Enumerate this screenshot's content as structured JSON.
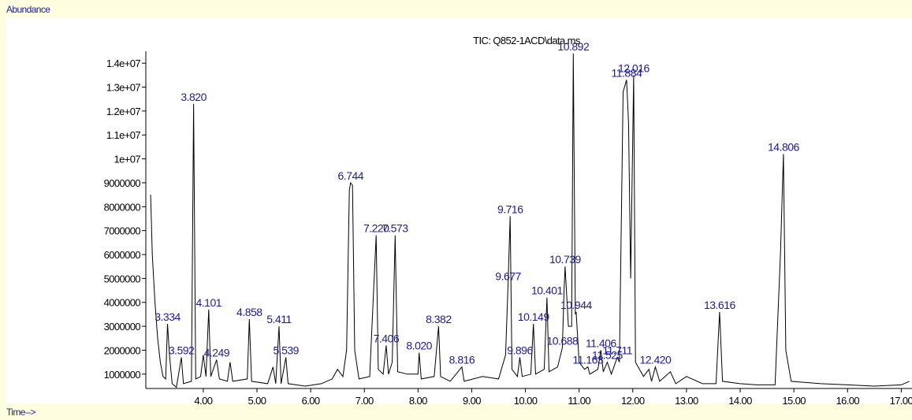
{
  "chart_data": {
    "type": "line",
    "title": "TIC: Q852-1ACD\\data.ms",
    "y_label": "Abundance",
    "x_label": "Time-->",
    "color": "#000000",
    "x": [
      3.02,
      3.05,
      3.1,
      3.15,
      3.2,
      3.25,
      3.3,
      3.334,
      3.37,
      3.42,
      3.5,
      3.592,
      3.63,
      3.78,
      3.82,
      3.86,
      3.95,
      4.0,
      4.05,
      4.101,
      4.14,
      4.249,
      4.3,
      4.45,
      4.5,
      4.55,
      4.82,
      4.858,
      4.9,
      5.2,
      5.3,
      5.35,
      5.411,
      5.45,
      5.539,
      5.58,
      5.9,
      6.2,
      6.4,
      6.5,
      6.6,
      6.67,
      6.72,
      6.744,
      6.78,
      6.82,
      6.9,
      7.1,
      7.22,
      7.26,
      7.35,
      7.406,
      7.45,
      7.52,
      7.573,
      7.62,
      7.8,
      8.0,
      8.02,
      8.06,
      8.3,
      8.382,
      8.42,
      8.6,
      8.816,
      8.86,
      9.2,
      9.5,
      9.63,
      9.677,
      9.716,
      9.75,
      9.85,
      9.896,
      9.94,
      10.1,
      10.149,
      10.19,
      10.35,
      10.401,
      10.44,
      10.6,
      10.688,
      10.72,
      10.739,
      10.8,
      10.86,
      10.892,
      10.93,
      10.944,
      11.0,
      11.1,
      11.163,
      11.2,
      11.35,
      11.406,
      11.45,
      11.525,
      11.6,
      11.711,
      11.75,
      11.82,
      11.884,
      11.92,
      11.96,
      12.016,
      12.05,
      12.2,
      12.3,
      12.35,
      12.42,
      12.5,
      12.7,
      12.8,
      13.0,
      13.3,
      13.55,
      13.616,
      13.67,
      14.0,
      14.3,
      14.65,
      14.75,
      14.806,
      14.85,
      14.95,
      15.5,
      16.0,
      16.5,
      17.0,
      17.15
    ],
    "values": [
      8500000,
      6000000,
      4000000,
      2500000,
      1500000,
      900000,
      800000,
      3100000,
      1800000,
      600000,
      450000,
      1700000,
      600000,
      700000,
      12300000,
      800000,
      900000,
      1800000,
      900000,
      3700000,
      900000,
      1600000,
      800000,
      700000,
      1500000,
      700000,
      800000,
      3300000,
      700000,
      600000,
      1300000,
      600000,
      3000000,
      600000,
      1700000,
      600000,
      500000,
      600000,
      800000,
      1200000,
      900000,
      2000000,
      8700000,
      9000000,
      8900000,
      2000000,
      800000,
      900000,
      6800000,
      1200000,
      1000000,
      2200000,
      1000000,
      1500000,
      6800000,
      1100000,
      1000000,
      1000000,
      1900000,
      800000,
      900000,
      3000000,
      900000,
      700000,
      1300000,
      700000,
      900000,
      800000,
      1800000,
      4800000,
      7600000,
      1200000,
      900000,
      1700000,
      900000,
      1000000,
      3100000,
      1000000,
      1200000,
      4200000,
      1100000,
      1300000,
      2100000,
      4500000,
      5500000,
      3000000,
      3000000,
      14400000,
      3500000,
      3600000,
      1500000,
      1200000,
      1300000,
      1000000,
      1200000,
      2000000,
      1100000,
      1500000,
      1000000,
      1700000,
      1500000,
      12800000,
      13300000,
      11500000,
      5000000,
      13500000,
      1500000,
      900000,
      1200000,
      700000,
      1300000,
      700000,
      1100000,
      600000,
      900000,
      600000,
      600000,
      3600000,
      700000,
      600000,
      550000,
      550000,
      6000000,
      10200000,
      2000000,
      700000,
      600000,
      550000,
      500000,
      550000,
      700000
    ],
    "peaks": [
      {
        "label": "3.334",
        "x": 3.334,
        "y": 3100000
      },
      {
        "label": "3.592",
        "x": 3.592,
        "y": 1700000
      },
      {
        "label": "3.820",
        "x": 3.82,
        "y": 12300000
      },
      {
        "label": "4.101",
        "x": 4.101,
        "y": 3700000
      },
      {
        "label": "4.249",
        "x": 4.249,
        "y": 1600000
      },
      {
        "label": "4.858",
        "x": 4.858,
        "y": 3300000
      },
      {
        "label": "5.411",
        "x": 5.411,
        "y": 3000000
      },
      {
        "label": "5.539",
        "x": 5.539,
        "y": 1700000
      },
      {
        "label": "6.744",
        "x": 6.744,
        "y": 9000000
      },
      {
        "label": "7.220",
        "x": 7.22,
        "y": 6800000
      },
      {
        "label": "7.406",
        "x": 7.406,
        "y": 2200000
      },
      {
        "label": "7.573",
        "x": 7.573,
        "y": 6800000
      },
      {
        "label": "8.020",
        "x": 8.02,
        "y": 1900000
      },
      {
        "label": "8.382",
        "x": 8.382,
        "y": 3000000
      },
      {
        "label": "8.816",
        "x": 8.816,
        "y": 1300000
      },
      {
        "label": "9.677",
        "x": 9.677,
        "y": 4800000
      },
      {
        "label": "9.716",
        "x": 9.716,
        "y": 7600000
      },
      {
        "label": "9.896",
        "x": 9.896,
        "y": 1700000
      },
      {
        "label": "10.149",
        "x": 10.149,
        "y": 3100000
      },
      {
        "label": "10.401",
        "x": 10.401,
        "y": 4200000
      },
      {
        "label": "10.688",
        "x": 10.688,
        "y": 2100000
      },
      {
        "label": "10.739",
        "x": 10.739,
        "y": 5500000
      },
      {
        "label": "10.892",
        "x": 10.892,
        "y": 14400000
      },
      {
        "label": "10.944",
        "x": 10.944,
        "y": 3600000
      },
      {
        "label": "11.163",
        "x": 11.163,
        "y": 1300000
      },
      {
        "label": "11.406",
        "x": 11.406,
        "y": 2000000
      },
      {
        "label": "11.525",
        "x": 11.525,
        "y": 1500000
      },
      {
        "label": "11.711",
        "x": 11.711,
        "y": 1700000
      },
      {
        "label": "11.884",
        "x": 11.884,
        "y": 13300000
      },
      {
        "label": "12.016",
        "x": 12.016,
        "y": 13500000
      },
      {
        "label": "12.420",
        "x": 12.42,
        "y": 1300000
      },
      {
        "label": "13.616",
        "x": 13.616,
        "y": 3600000
      },
      {
        "label": "14.806",
        "x": 14.806,
        "y": 10200000
      }
    ],
    "xlim": [
      2.93,
      17.2
    ],
    "xticks": [
      {
        "value": 4,
        "label": "4.00"
      },
      {
        "value": 5,
        "label": "5.00"
      },
      {
        "value": 6,
        "label": "6.00"
      },
      {
        "value": 7,
        "label": "7.00"
      },
      {
        "value": 8,
        "label": "8.00"
      },
      {
        "value": 9,
        "label": "9.00"
      },
      {
        "value": 10,
        "label": "10.00"
      },
      {
        "value": 11,
        "label": "11.00"
      },
      {
        "value": 12,
        "label": "12.00"
      },
      {
        "value": 13,
        "label": "13.00"
      },
      {
        "value": 14,
        "label": "14.00"
      },
      {
        "value": 15,
        "label": "15.00"
      },
      {
        "value": 16,
        "label": "16.00"
      },
      {
        "value": 17,
        "label": "17.00"
      }
    ],
    "ylim": [
      400000,
      14500000
    ],
    "yticks": [
      1000000,
      2000000,
      3000000,
      4000000,
      5000000,
      6000000,
      7000000,
      8000000,
      9000000,
      {
        "value": 10000000,
        "label": "1e+07"
      },
      {
        "value": 11000000,
        "label": "1.1e+07"
      },
      {
        "value": 12000000,
        "label": "1.2e+07"
      },
      {
        "value": 13000000,
        "label": "1.3e+07"
      },
      {
        "value": 14000000,
        "label": "1.4e+07"
      }
    ]
  }
}
